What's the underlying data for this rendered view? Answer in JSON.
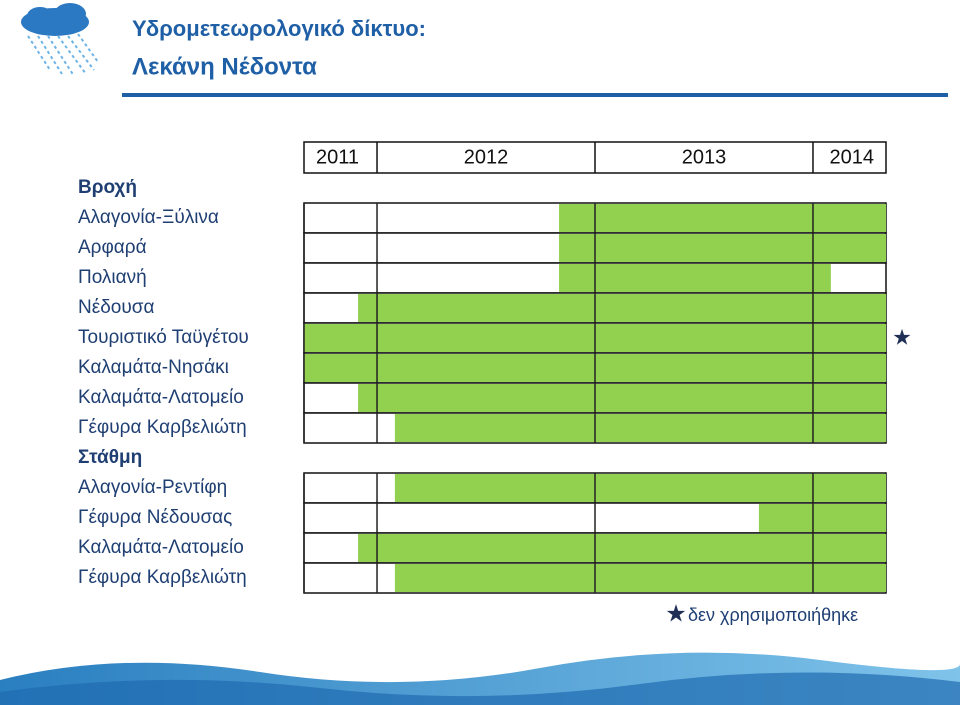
{
  "chart_data": {
    "type": "timeline",
    "title": "Υδρομετεωρολογικό δίκτυο:",
    "subtitle": "Λεκάνη Νέδοντα",
    "years": [
      "2011",
      "2012",
      "2013",
      "2014"
    ],
    "xlim": [
      2011.665,
      2014.335
    ],
    "xticks": [
      2012,
      2013,
      2014
    ],
    "color": "#92d050",
    "groups": [
      {
        "name": "Βροχή",
        "rows": [
          {
            "label": "Αλαγονία-Ξύλινα",
            "start": 2012.835,
            "end": 2014.335
          },
          {
            "label": "Αρφαρά",
            "start": 2012.835,
            "end": 2014.335
          },
          {
            "label": "Πολιανή",
            "start": 2012.835,
            "end": 2014.082
          },
          {
            "label": "Νέδουσα",
            "start": 2011.913,
            "end": 2014.335
          },
          {
            "label": "Τουριστικό Ταϋγέτου",
            "start": 2011.665,
            "end": 2014.335,
            "unused": true
          },
          {
            "label": "Καλαμάτα-Νησάκι",
            "start": 2011.665,
            "end": 2014.335
          },
          {
            "label": "Καλαμάτα-Λατομείο",
            "start": 2011.913,
            "end": 2014.335
          },
          {
            "label": "Γέφυρα Καρβελιώτη",
            "start": 2012.082,
            "end": 2014.335
          }
        ]
      },
      {
        "name": "Στάθμη",
        "rows": [
          {
            "label": "Αλαγονία-Ρεντίφη",
            "start": 2012.082,
            "end": 2014.335
          },
          {
            "label": "Γέφυρα Νέδουσας",
            "start": 2013.752,
            "end": 2014.335
          },
          {
            "label": "Καλαμάτα-Λατομείο",
            "start": 2011.913,
            "end": 2014.335
          },
          {
            "label": "Γέφυρα Καρβελιώτη",
            "start": 2012.082,
            "end": 2014.335
          }
        ]
      }
    ],
    "unused_legend": "δεν χρησιμοποιήθηκε"
  }
}
